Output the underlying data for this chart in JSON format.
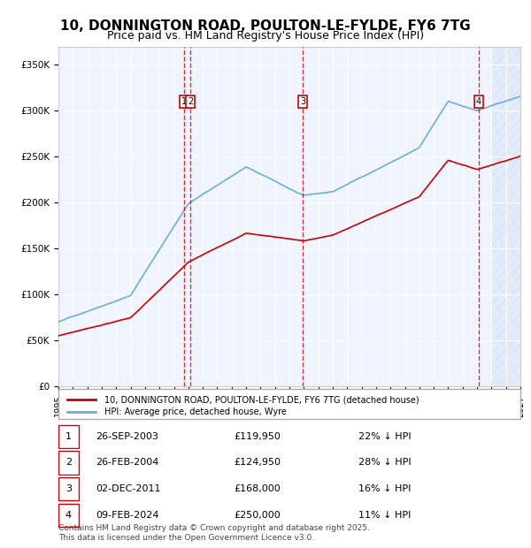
{
  "title_line1": "10, DONNINGTON ROAD, POULTON-LE-FYLDE, FY6 7TG",
  "title_line2": "Price paid vs. HM Land Registry's House Price Index (HPI)",
  "transactions": [
    {
      "num": 1,
      "date_str": "26-SEP-2003",
      "date_x": 2003.73,
      "price": 119950
    },
    {
      "num": 2,
      "date_str": "26-FEB-2004",
      "date_x": 2004.15,
      "price": 124950
    },
    {
      "num": 3,
      "date_str": "02-DEC-2011",
      "date_x": 2011.92,
      "price": 168000
    },
    {
      "num": 4,
      "date_str": "09-FEB-2024",
      "date_x": 2024.11,
      "price": 250000
    }
  ],
  "table_rows": [
    {
      "num": 1,
      "date": "26-SEP-2003",
      "price": "£119,950",
      "pct": "22% ↓ HPI"
    },
    {
      "num": 2,
      "date": "26-FEB-2004",
      "price": "£124,950",
      "pct": "28% ↓ HPI"
    },
    {
      "num": 3,
      "date": "02-DEC-2011",
      "price": "£168,000",
      "pct": "16% ↓ HPI"
    },
    {
      "num": 4,
      "date": "09-FEB-2024",
      "price": "£250,000",
      "pct": "11% ↓ HPI"
    }
  ],
  "hpi_color": "#6baed6",
  "price_color": "#cc0000",
  "vline_color": "#cc0000",
  "background_chart": "#f0f4ff",
  "background_hatch": "#e8eeff",
  "ylim": [
    0,
    370000
  ],
  "xlim_start": 1995,
  "xlim_end": 2027,
  "footer": "Contains HM Land Registry data © Crown copyright and database right 2025.\nThis data is licensed under the Open Government Licence v3.0."
}
